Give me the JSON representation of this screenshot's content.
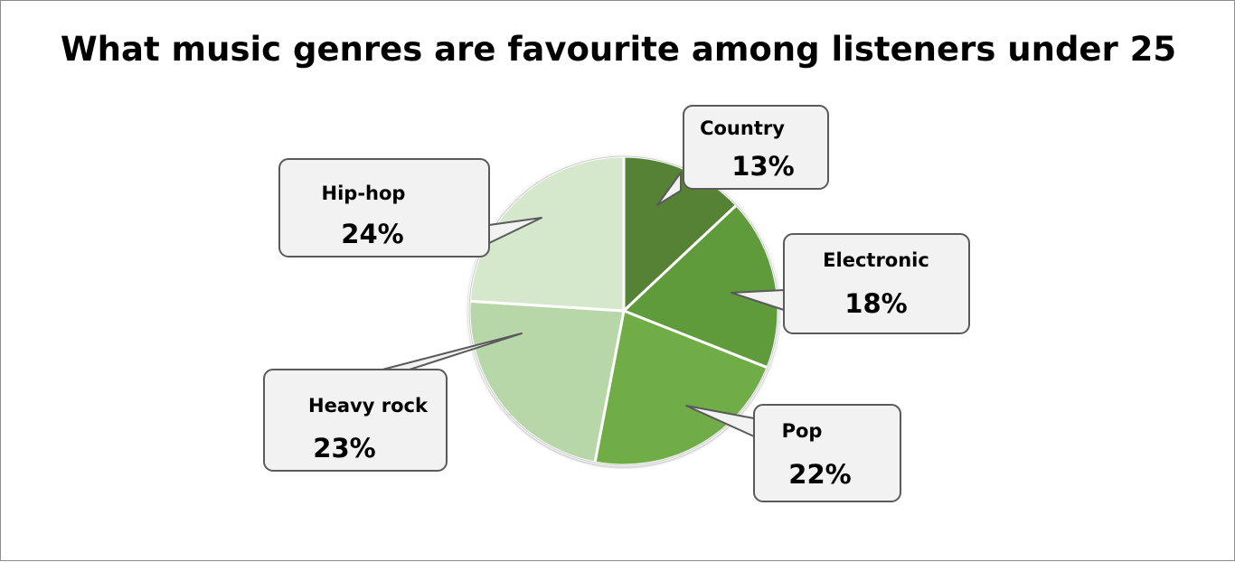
{
  "chart_data": {
    "type": "pie",
    "title": "What music genres are favourite among listeners under 25",
    "slices": [
      {
        "label": "Country",
        "value": 13,
        "value_text": "13%",
        "color": "#548235"
      },
      {
        "label": "Electronic",
        "value": 18,
        "value_text": "18%",
        "color": "#5e9a3a"
      },
      {
        "label": "Pop",
        "value": 22,
        "value_text": "22%",
        "color": "#70ad47"
      },
      {
        "label": "Heavy rock",
        "value": 23,
        "value_text": "23%",
        "color": "#b7d7a8"
      },
      {
        "label": "Hip-hop",
        "value": 24,
        "value_text": "24%",
        "color": "#d5e8cc"
      }
    ]
  }
}
